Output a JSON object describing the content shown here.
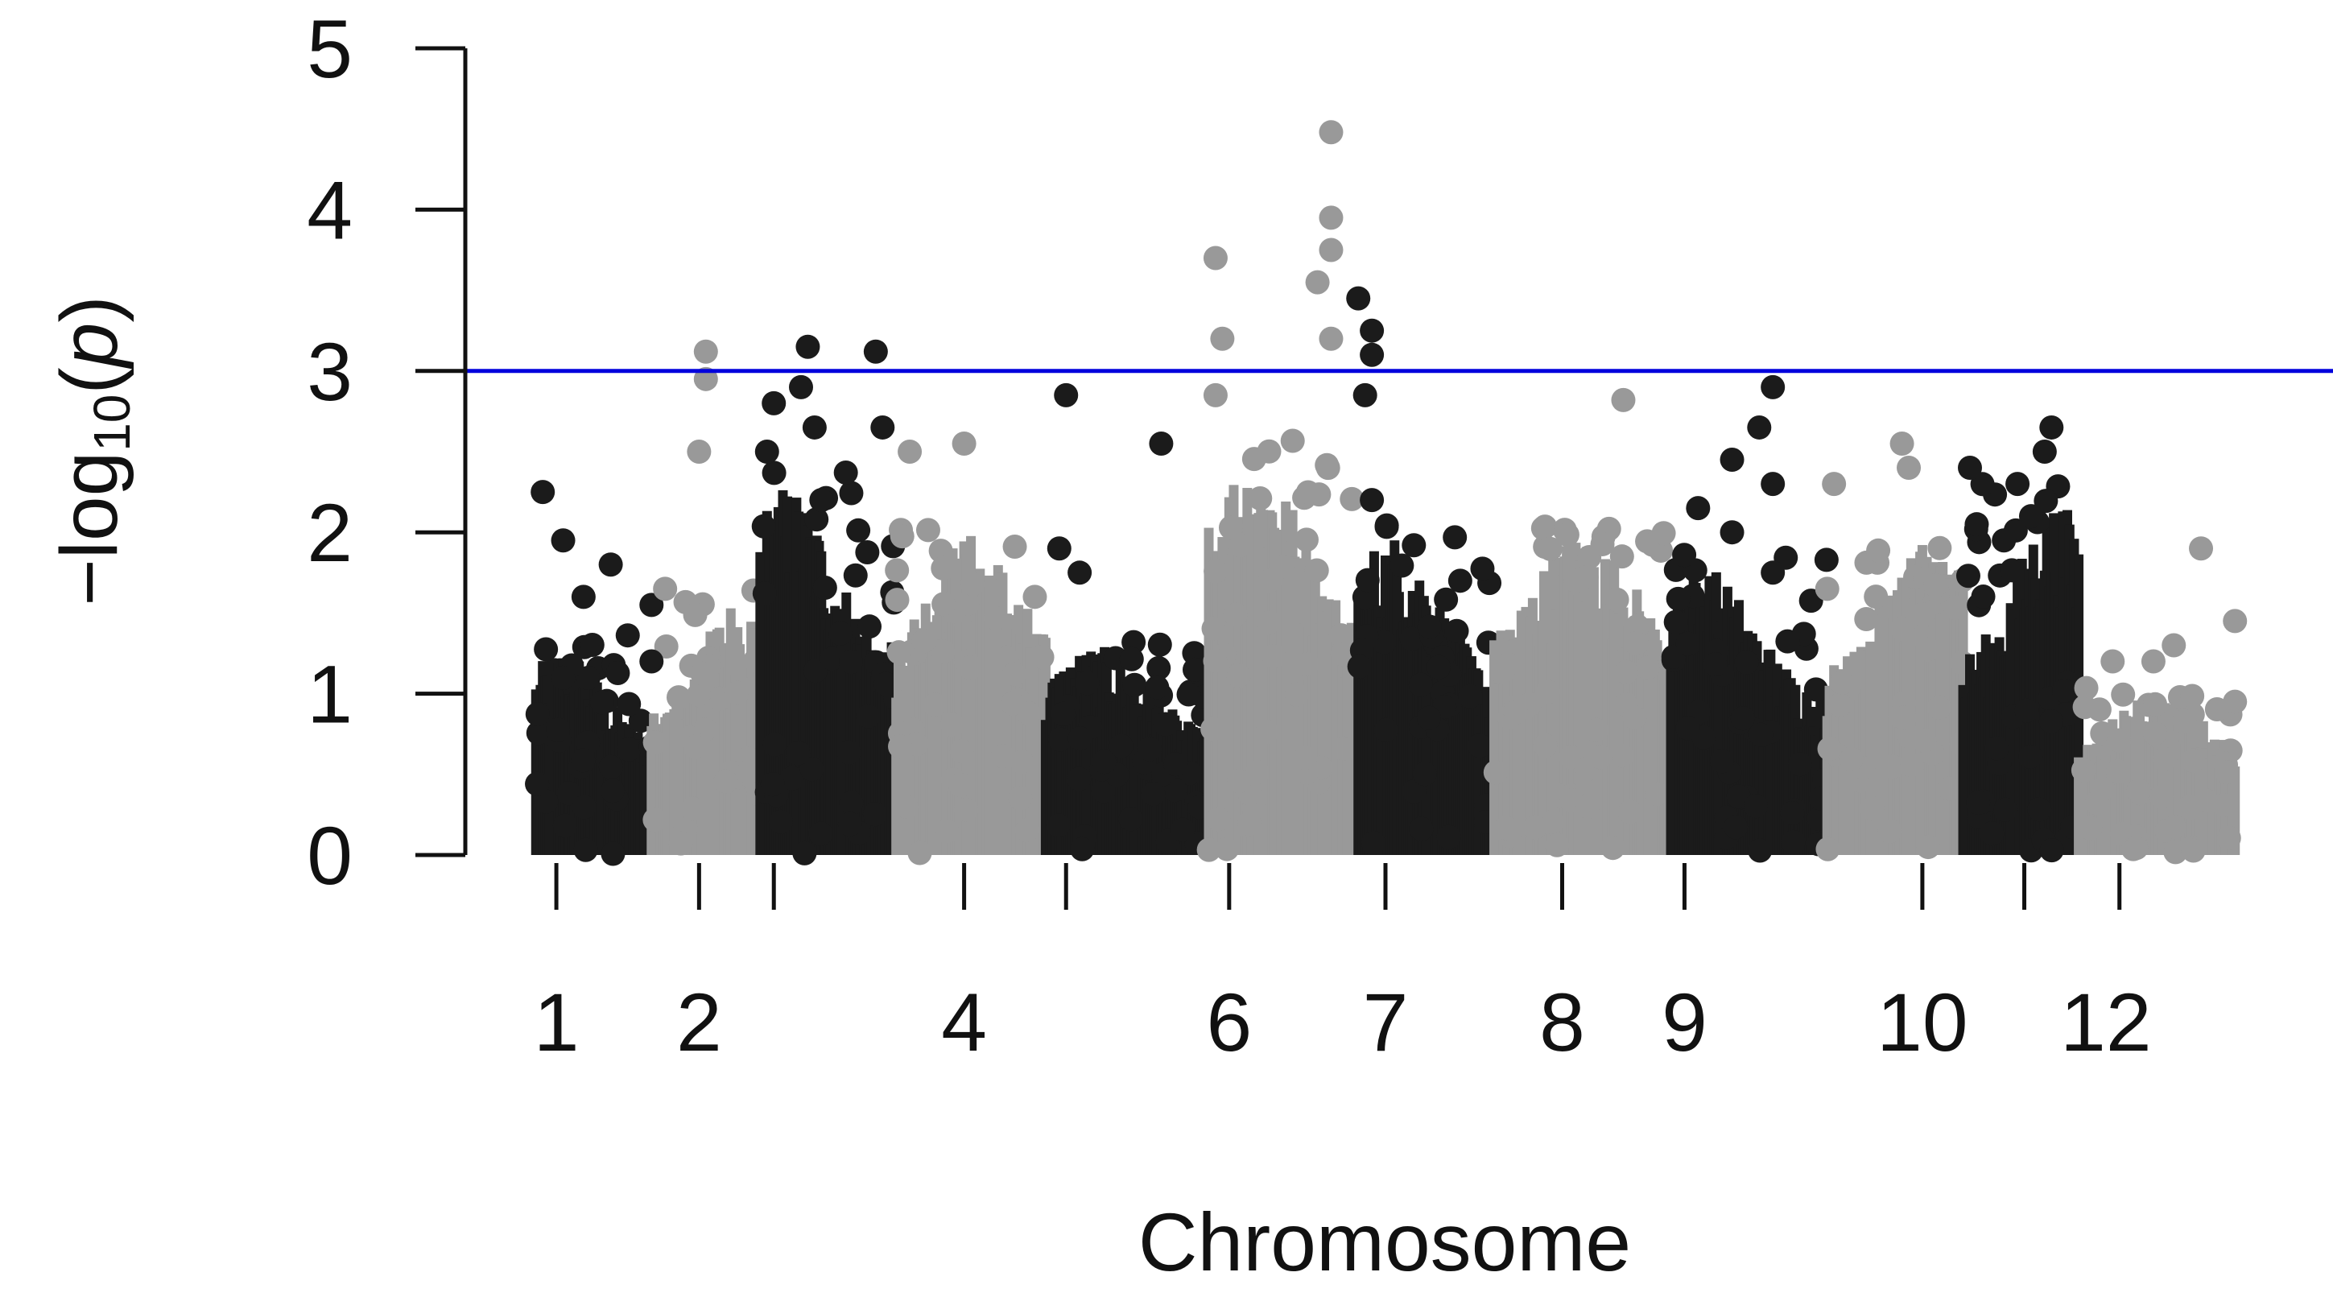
{
  "chart_data": {
    "type": "scatter",
    "subtype": "manhattan",
    "title": "",
    "xlabel": "Chromosome",
    "ylabel_parts": [
      "−log",
      "10",
      "(",
      "p",
      ")"
    ],
    "ylim": [
      0,
      5
    ],
    "yticks": [
      0,
      1,
      2,
      3,
      4,
      5
    ],
    "x_tick_labels": [
      "1",
      "2",
      "4",
      "6",
      "7",
      "8",
      "9",
      "10",
      "12"
    ],
    "x_tick_label_positions": [
      3,
      24,
      63,
      102,
      125,
      151,
      169,
      204,
      231
    ],
    "x_tick_marks": [
      3,
      24,
      35,
      63,
      78,
      102,
      125,
      151,
      169,
      204,
      219,
      233
    ],
    "x_range": [
      -4,
      254
    ],
    "threshold": 3,
    "colors": {
      "dark": "#1b1b1b",
      "light": "#999999",
      "threshold": "#0000dd",
      "axis": "#111111"
    },
    "segments": [
      {
        "start": 0,
        "end": 17,
        "color": "dark",
        "peak": 1.3,
        "peakPos": 0.25
      },
      {
        "start": 17,
        "end": 33,
        "color": "light",
        "peak": 1.6,
        "peakPos": 0.8
      },
      {
        "start": 33,
        "end": 53,
        "color": "dark",
        "peak": 2.3,
        "peakPos": 0.2
      },
      {
        "start": 53,
        "end": 75,
        "color": "light",
        "peak": 2.0,
        "peakPos": 0.5
      },
      {
        "start": 75,
        "end": 99,
        "color": "dark",
        "peak": 1.3,
        "peakPos": 0.3
      },
      {
        "start": 99,
        "end": 121,
        "color": "light",
        "peak": 2.5,
        "peakPos": 0.3
      },
      {
        "start": 121,
        "end": 141,
        "color": "dark",
        "peak": 2.0,
        "peakPos": 0.25
      },
      {
        "start": 141,
        "end": 167,
        "color": "light",
        "peak": 2.0,
        "peakPos": 0.5
      },
      {
        "start": 167,
        "end": 190,
        "color": "dark",
        "peak": 1.8,
        "peakPos": 0.2
      },
      {
        "start": 190,
        "end": 210,
        "color": "light",
        "peak": 2.0,
        "peakPos": 0.75
      },
      {
        "start": 210,
        "end": 227,
        "color": "dark",
        "peak": 2.2,
        "peakPos": 0.8
      },
      {
        "start": 227,
        "end": 250,
        "color": "light",
        "peak": 1.0,
        "peakPos": 0.5
      }
    ],
    "highlighted_points": [
      {
        "x": 1,
        "y": 2.25,
        "color": "dark"
      },
      {
        "x": 4,
        "y": 1.95,
        "color": "dark"
      },
      {
        "x": 7,
        "y": 1.6,
        "color": "dark"
      },
      {
        "x": 11,
        "y": 1.8,
        "color": "dark"
      },
      {
        "x": 17,
        "y": 1.55,
        "color": "dark"
      },
      {
        "x": 17,
        "y": 1.2,
        "color": "dark"
      },
      {
        "x": 19,
        "y": 1.65,
        "color": "light"
      },
      {
        "x": 25,
        "y": 3.12,
        "color": "light"
      },
      {
        "x": 25,
        "y": 2.95,
        "color": "light"
      },
      {
        "x": 24,
        "y": 2.5,
        "color": "light"
      },
      {
        "x": 35,
        "y": 2.8,
        "color": "dark"
      },
      {
        "x": 34,
        "y": 2.5,
        "color": "dark"
      },
      {
        "x": 39,
        "y": 2.9,
        "color": "dark"
      },
      {
        "x": 40,
        "y": 3.15,
        "color": "dark"
      },
      {
        "x": 41,
        "y": 2.65,
        "color": "dark"
      },
      {
        "x": 42,
        "y": 2.2,
        "color": "dark"
      },
      {
        "x": 50,
        "y": 3.12,
        "color": "dark"
      },
      {
        "x": 51,
        "y": 2.65,
        "color": "dark"
      },
      {
        "x": 55,
        "y": 2.5,
        "color": "light"
      },
      {
        "x": 63,
        "y": 2.55,
        "color": "light"
      },
      {
        "x": 78,
        "y": 2.85,
        "color": "dark"
      },
      {
        "x": 92,
        "y": 2.55,
        "color": "dark"
      },
      {
        "x": 77,
        "y": 1.9,
        "color": "dark"
      },
      {
        "x": 80,
        "y": 1.75,
        "color": "dark"
      },
      {
        "x": 100,
        "y": 3.7,
        "color": "light"
      },
      {
        "x": 101,
        "y": 3.2,
        "color": "light"
      },
      {
        "x": 100,
        "y": 2.85,
        "color": "light"
      },
      {
        "x": 108,
        "y": 1.7,
        "color": "light"
      },
      {
        "x": 117,
        "y": 4.48,
        "color": "light"
      },
      {
        "x": 117,
        "y": 3.95,
        "color": "light"
      },
      {
        "x": 117,
        "y": 3.75,
        "color": "light"
      },
      {
        "x": 115,
        "y": 3.55,
        "color": "light"
      },
      {
        "x": 117,
        "y": 3.2,
        "color": "light"
      },
      {
        "x": 121,
        "y": 3.45,
        "color": "dark"
      },
      {
        "x": 123,
        "y": 3.25,
        "color": "dark"
      },
      {
        "x": 123,
        "y": 3.1,
        "color": "dark"
      },
      {
        "x": 122,
        "y": 2.85,
        "color": "dark"
      },
      {
        "x": 123,
        "y": 2.2,
        "color": "dark"
      },
      {
        "x": 136,
        "y": 1.7,
        "color": "dark"
      },
      {
        "x": 160,
        "y": 2.82,
        "color": "light"
      },
      {
        "x": 171,
        "y": 2.15,
        "color": "dark"
      },
      {
        "x": 176,
        "y": 2.0,
        "color": "dark"
      },
      {
        "x": 176,
        "y": 2.45,
        "color": "dark"
      },
      {
        "x": 180,
        "y": 2.65,
        "color": "dark"
      },
      {
        "x": 182,
        "y": 2.9,
        "color": "dark"
      },
      {
        "x": 182,
        "y": 2.3,
        "color": "dark"
      },
      {
        "x": 182,
        "y": 1.75,
        "color": "dark"
      },
      {
        "x": 191,
        "y": 2.3,
        "color": "light"
      },
      {
        "x": 190,
        "y": 1.65,
        "color": "light"
      },
      {
        "x": 201,
        "y": 2.55,
        "color": "light"
      },
      {
        "x": 202,
        "y": 2.4,
        "color": "light"
      },
      {
        "x": 211,
        "y": 2.4,
        "color": "dark"
      },
      {
        "x": 212,
        "y": 2.05,
        "color": "dark"
      },
      {
        "x": 216,
        "y": 1.95,
        "color": "dark"
      },
      {
        "x": 218,
        "y": 2.3,
        "color": "dark"
      },
      {
        "x": 220,
        "y": 2.1,
        "color": "dark"
      },
      {
        "x": 222,
        "y": 2.5,
        "color": "dark"
      },
      {
        "x": 223,
        "y": 2.65,
        "color": "dark"
      },
      {
        "x": 245,
        "y": 1.9,
        "color": "light"
      },
      {
        "x": 250,
        "y": 1.45,
        "color": "light"
      },
      {
        "x": 250,
        "y": 0.95,
        "color": "light"
      },
      {
        "x": 232,
        "y": 1.2,
        "color": "light"
      },
      {
        "x": 238,
        "y": 1.2,
        "color": "light"
      },
      {
        "x": 241,
        "y": 1.3,
        "color": "light"
      }
    ]
  }
}
